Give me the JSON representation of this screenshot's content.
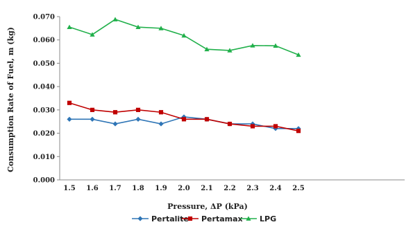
{
  "chart_data": {
    "type": "line",
    "title": "",
    "xlabel": "Pressure, ΔP (kPa)",
    "ylabel": "Consumption Rate of Fuel, m (kg)",
    "x": [
      1.5,
      1.6,
      1.7,
      1.8,
      1.9,
      2.0,
      2.1,
      2.2,
      2.3,
      2.4,
      2.5
    ],
    "x_tick_labels": [
      "1.5",
      "1.6",
      "1.7",
      "1.8",
      "1.9",
      "2.0",
      "2.1",
      "2.2",
      "2.3",
      "2.4",
      "2.5"
    ],
    "ylim": [
      0,
      0.07
    ],
    "y_ticks": [
      0,
      0.01,
      0.02,
      0.03,
      0.04,
      0.05,
      0.06,
      0.07
    ],
    "y_tick_labels": [
      "0.000",
      "0.010",
      "0.020",
      "0.030",
      "0.040",
      "0.050",
      "0.060",
      "0.070"
    ],
    "grid": false,
    "legend_position": "bottom",
    "series": [
      {
        "name": "Pertalite",
        "color": "#2e75b6",
        "marker": "diamond",
        "values": [
          0.026,
          0.026,
          0.024,
          0.026,
          0.024,
          0.027,
          0.026,
          0.024,
          0.024,
          0.022,
          0.022
        ]
      },
      {
        "name": "Pertamax",
        "color": "#c00000",
        "marker": "square",
        "values": [
          0.033,
          0.03,
          0.029,
          0.03,
          0.029,
          0.026,
          0.026,
          0.024,
          0.023,
          0.023,
          0.021
        ]
      },
      {
        "name": "LPG",
        "color": "#21b04b",
        "marker": "triangle",
        "values": [
          0.0655,
          0.0623,
          0.0688,
          0.0655,
          0.065,
          0.0619,
          0.056,
          0.0555,
          0.0576,
          0.0575,
          0.0536
        ]
      }
    ]
  }
}
